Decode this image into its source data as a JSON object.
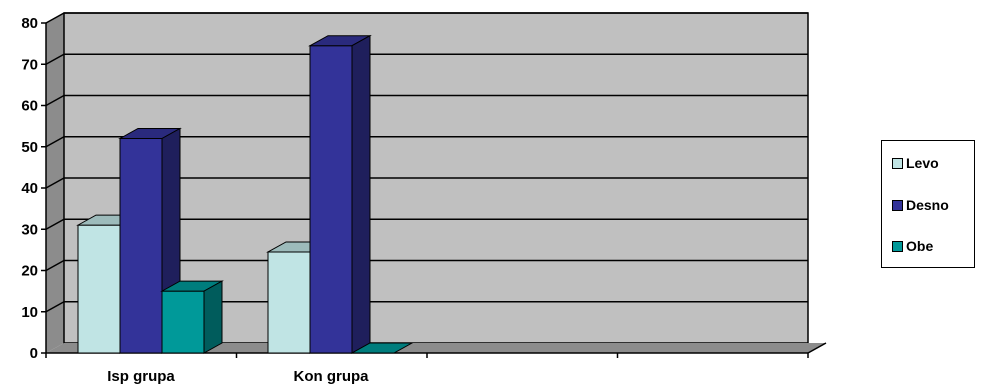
{
  "chart_data": {
    "type": "bar",
    "categories": [
      "Isp grupa",
      "Kon grupa"
    ],
    "series": [
      {
        "name": "Levo",
        "values": [
          31,
          24.5
        ],
        "color": "#c0e4e4"
      },
      {
        "name": "Desno",
        "values": [
          52,
          74.5
        ],
        "color": "#333399"
      },
      {
        "name": "Obe",
        "values": [
          15,
          0
        ],
        "color": "#009999"
      }
    ],
    "yticks": [
      "0",
      "10",
      "20",
      "30",
      "40",
      "50",
      "60",
      "70",
      "80"
    ],
    "ylim": [
      0,
      80
    ],
    "grid": true,
    "legend_position": "right",
    "plot_color": "#c0c0c0"
  }
}
